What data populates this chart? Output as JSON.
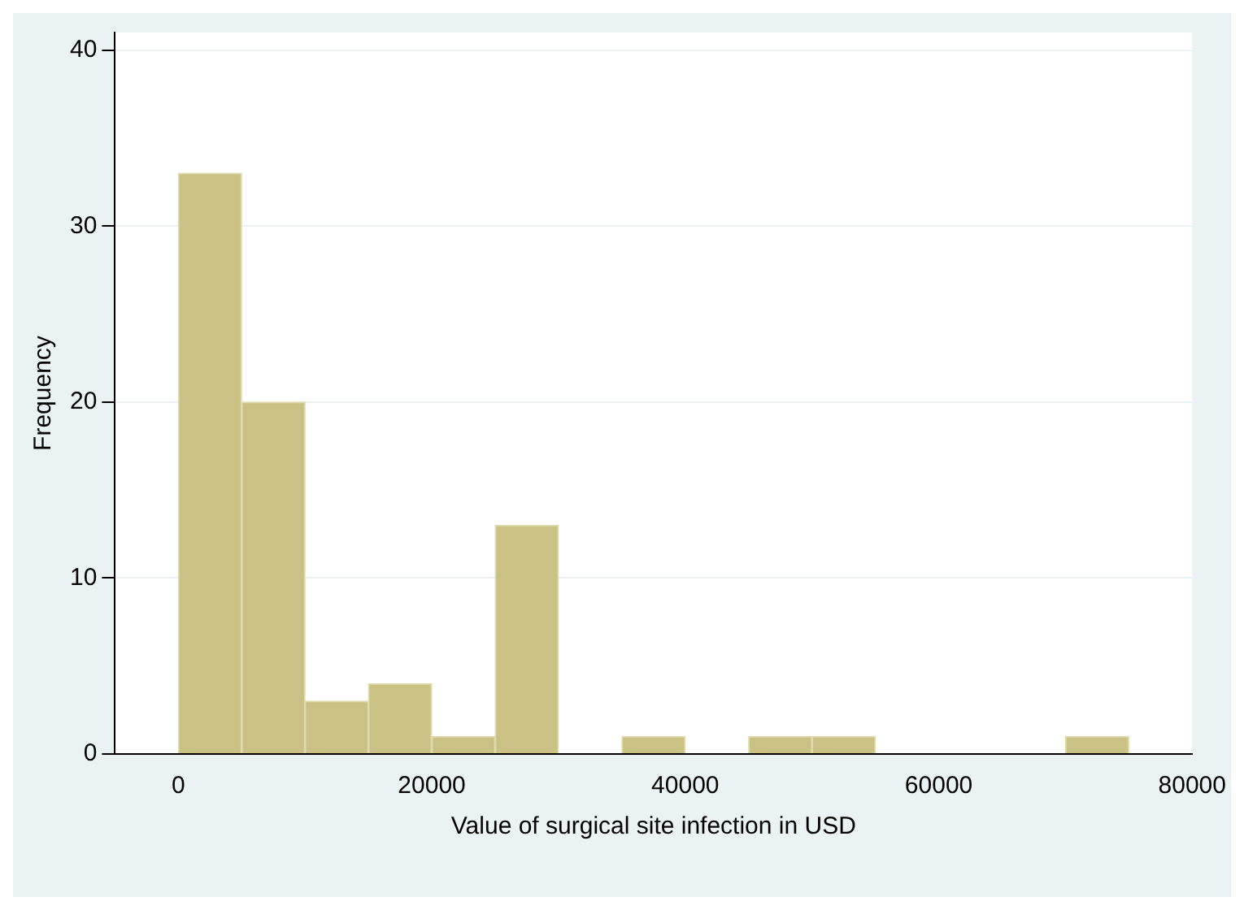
{
  "chart_data": {
    "type": "histogram",
    "xlabel": "Value of surgical site infection in USD",
    "ylabel": "Frequency",
    "bins": [
      0,
      5000,
      10000,
      15000,
      20000,
      25000,
      30000,
      35000,
      40000,
      45000,
      50000,
      55000,
      60000,
      65000,
      70000,
      75000
    ],
    "values": [
      33,
      20,
      3,
      4,
      1,
      13,
      0,
      1,
      0,
      1,
      1,
      0,
      0,
      0,
      1
    ],
    "color": "#c9c284",
    "xlim": [
      -5000,
      80000
    ],
    "xticks": [
      0,
      20000,
      40000,
      60000,
      80000
    ],
    "ylim": [
      0,
      41
    ],
    "yticks": [
      0,
      10,
      20,
      30,
      40
    ],
    "grid": "y",
    "legend": false
  }
}
